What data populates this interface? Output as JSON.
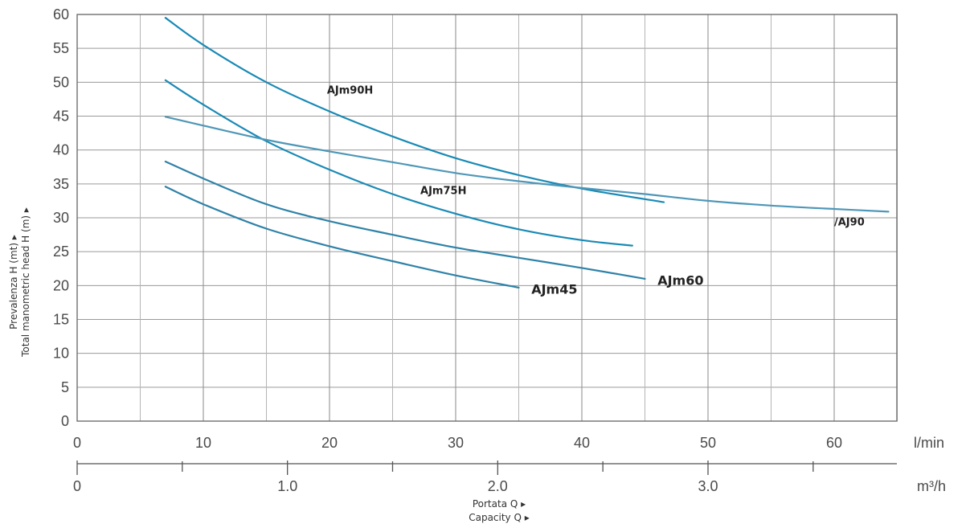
{
  "chart_data": {
    "type": "line",
    "title": "",
    "ylabel_lines": [
      "Prevalenza H (mt) ▸",
      "Total manometric head H (m) ▸"
    ],
    "xlabel_lines": [
      "Portata Q ▸",
      "Capacity Q ▸"
    ],
    "x_unit_primary": "l/min",
    "x_unit_secondary": "m³/h",
    "xlim": [
      0,
      64.5
    ],
    "ylim": [
      0,
      60
    ],
    "x_ticks_primary": [
      {
        "value": 0,
        "label": "0"
      },
      {
        "value": 10,
        "label": "10"
      },
      {
        "value": 20,
        "label": "20"
      },
      {
        "value": 30,
        "label": "30"
      },
      {
        "value": 40,
        "label": "40"
      },
      {
        "value": 50,
        "label": "50"
      },
      {
        "value": 60,
        "label": "60"
      }
    ],
    "x_ticks_secondary": [
      {
        "value": 0,
        "label": "0"
      },
      {
        "value": 16.67,
        "label": "1.0"
      },
      {
        "value": 33.33,
        "label": "2.0"
      },
      {
        "value": 50,
        "label": "3.0"
      }
    ],
    "y_ticks": [
      0,
      5,
      10,
      15,
      20,
      25,
      30,
      35,
      40,
      45,
      50,
      55,
      60
    ],
    "grid": true,
    "series": [
      {
        "name": "AJm90H",
        "color": "#1a8ab5",
        "x": [
          7,
          10,
          15,
          20,
          25,
          30,
          35,
          40,
          46.5
        ],
        "y": [
          59.5,
          55.5,
          50,
          45.7,
          42,
          38.8,
          36.3,
          34.3,
          32.3
        ]
      },
      {
        "name": "AJm75H",
        "color": "#1a8ab5",
        "x": [
          7,
          10,
          15,
          20,
          25,
          30,
          35,
          40,
          44
        ],
        "y": [
          50.3,
          46.7,
          41.3,
          37.1,
          33.5,
          30.6,
          28.3,
          26.7,
          25.9
        ]
      },
      {
        "name": "/AJ90",
        "color": "#4e97b8",
        "x": [
          7,
          10,
          15,
          20,
          25,
          30,
          35,
          40,
          45,
          50,
          55,
          60,
          64.3
        ],
        "y": [
          44.9,
          43.6,
          41.5,
          39.8,
          38.2,
          36.6,
          35.4,
          34.4,
          33.5,
          32.5,
          31.8,
          31.3,
          30.9
        ]
      },
      {
        "name": "AJm60",
        "color": "#2f82a8",
        "x": [
          7,
          10,
          15,
          20,
          25,
          30,
          35,
          40,
          45
        ],
        "y": [
          38.3,
          35.8,
          32,
          29.5,
          27.5,
          25.6,
          24.1,
          22.6,
          21
        ]
      },
      {
        "name": "AJm45",
        "color": "#2f82a8",
        "x": [
          7,
          10,
          15,
          20,
          25,
          30,
          35
        ],
        "y": [
          34.6,
          32,
          28.4,
          25.8,
          23.6,
          21.5,
          19.7
        ]
      }
    ],
    "labels": [
      {
        "series": "AJm90H",
        "text": "AJm90H",
        "x": 19.8,
        "y": 48.3
      },
      {
        "series": "AJm75H",
        "text": "AJm75H",
        "x": 27.2,
        "y": 33.5
      },
      {
        "series": "/AJ90",
        "text": "/AJ90",
        "x": 60.0,
        "y": 28.9
      },
      {
        "series": "AJm60",
        "text": "AJm60",
        "x": 46.0,
        "y": 20.1
      },
      {
        "series": "AJm45",
        "text": "AJm45",
        "x": 36.0,
        "y": 18.8
      }
    ]
  }
}
